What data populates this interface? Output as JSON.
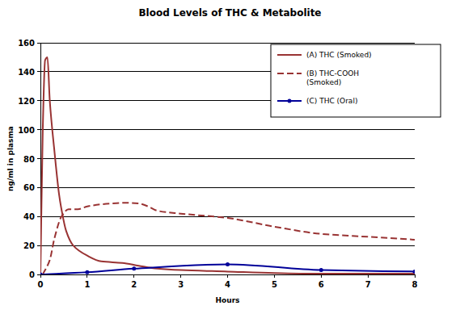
{
  "chart_data": {
    "type": "line",
    "title": "Blood Levels of THC & Metabolite",
    "x_label": "Hours",
    "y_label": "ng/ml in plasma",
    "xlim": [
      0,
      8
    ],
    "xticks": [
      0,
      1,
      2,
      3,
      4,
      5,
      6,
      7,
      8
    ],
    "ylim": [
      0,
      160
    ],
    "yticks": [
      0,
      20,
      40,
      60,
      80,
      100,
      120,
      140,
      160
    ],
    "grid": true,
    "legend": "upper right",
    "series": [
      {
        "name": "(A) THC (Smoked)",
        "color": "#993333",
        "line_style": "solid",
        "x": [
          0,
          0.05,
          0.1,
          0.15,
          0.2,
          0.3,
          0.4,
          0.45,
          0.55,
          0.7,
          1.0,
          1.3,
          1.75,
          2.1,
          2.5,
          3,
          4,
          5,
          6,
          7,
          8
        ],
        "values": [
          0,
          100,
          148,
          150,
          120,
          85,
          55,
          45,
          30,
          20,
          13,
          9,
          8,
          6,
          4,
          3,
          2,
          1,
          0.5,
          0.5,
          0.5
        ]
      },
      {
        "name": "(B) THC-COOH (Smoked)",
        "color": "#993333",
        "line_style": "dashed",
        "x": [
          0.05,
          0.2,
          0.3,
          0.45,
          0.6,
          0.8,
          1.0,
          1.5,
          1.8,
          2.1,
          2.3,
          2.5,
          3,
          4,
          5,
          6,
          7,
          8
        ],
        "values": [
          0,
          10,
          25,
          40,
          45,
          45,
          47,
          49,
          49.5,
          49,
          47,
          44,
          42,
          39,
          33,
          28,
          26,
          24
        ]
      },
      {
        "name": "(C) THC (Oral)",
        "color": "#000099",
        "line_style": "solid",
        "marker": "circle",
        "x": [
          0,
          1,
          2,
          4,
          6,
          8
        ],
        "values": [
          0,
          1.5,
          4,
          7,
          3,
          2
        ]
      }
    ]
  }
}
